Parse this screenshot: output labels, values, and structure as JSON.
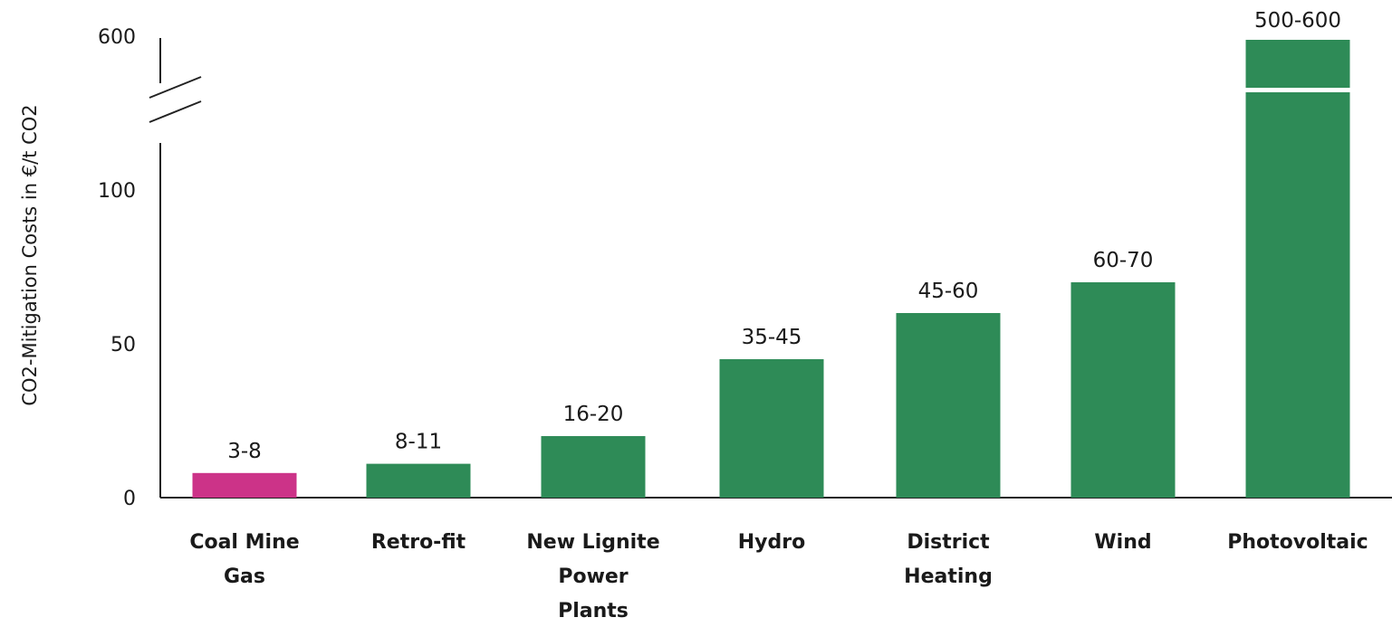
{
  "chart_data": {
    "type": "bar",
    "title": "",
    "xlabel": "",
    "ylabel": "CO2-Mitigation Costs in €/t CO2",
    "ylim": [
      0,
      110
    ],
    "y_axis_break": {
      "after": 110,
      "top_tick": 600
    },
    "yticks": [
      {
        "value": 0,
        "label": "0"
      },
      {
        "value": 50,
        "label": "50"
      },
      {
        "value": 100,
        "label": "100"
      },
      {
        "value": 600,
        "label": "600"
      }
    ],
    "grid": false,
    "legend": "none",
    "colors": {
      "highlight": "#cc3388",
      "default": "#2e8b57",
      "axis": "#222222"
    },
    "categories": [
      {
        "lines": [
          "Coal Mine",
          "Gas"
        ],
        "value": 8,
        "range_label": "3-8",
        "highlight": true
      },
      {
        "lines": [
          "Retro-fit"
        ],
        "value": 11,
        "range_label": "8-11",
        "highlight": false
      },
      {
        "lines": [
          "New Lignite",
          "Power",
          "Plants"
        ],
        "value": 20,
        "range_label": "16-20",
        "highlight": false
      },
      {
        "lines": [
          "Hydro"
        ],
        "value": 45,
        "range_label": "35-45",
        "highlight": false
      },
      {
        "lines": [
          "District",
          "Heating"
        ],
        "value": 60,
        "range_label": "45-60",
        "highlight": false
      },
      {
        "lines": [
          "Wind"
        ],
        "value": 70,
        "range_label": "60-70",
        "highlight": false
      },
      {
        "lines": [
          "Photovoltaic"
        ],
        "value": 600,
        "range_label": "500-600",
        "highlight": false,
        "broken": true
      }
    ]
  }
}
